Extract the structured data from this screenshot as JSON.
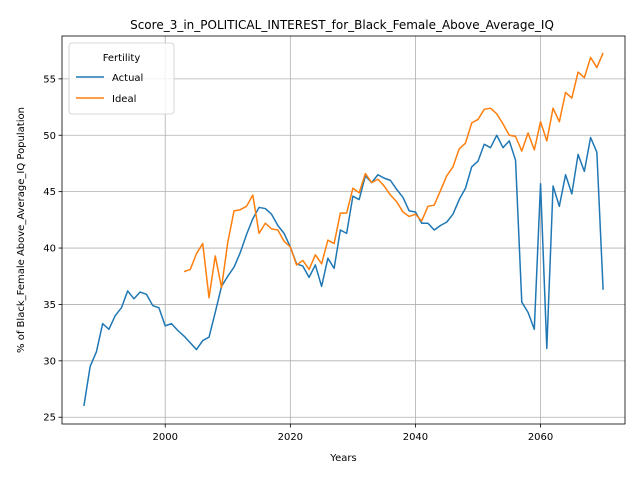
{
  "chart_data": {
    "type": "line",
    "title": "Score_3_in_POLITICAL_INTEREST_for_Black_Female_Above_Average_IQ",
    "xlabel": "Years",
    "ylabel": "% of Black_Female Above_Average_IQ Population",
    "xlim": [
      1983.5,
      2073.5
    ],
    "ylim": [
      24.4,
      58.8
    ],
    "xticks": [
      2000,
      2020,
      2040,
      2060
    ],
    "yticks": [
      25,
      30,
      35,
      40,
      45,
      50,
      55
    ],
    "grid": true,
    "legend": {
      "title": "Fertility",
      "placement": "top-left"
    },
    "colors": {
      "Actual": "#1f77b4",
      "Ideal": "#ff7f0e"
    },
    "series": [
      {
        "name": "Actual",
        "x": [
          1987,
          1988,
          1989,
          1990,
          1991,
          1992,
          1993,
          1994,
          1995,
          1996,
          1997,
          1998,
          1999,
          2000,
          2001,
          2002,
          2003,
          2004,
          2005,
          2006,
          2007,
          2008,
          2009,
          2010,
          2011,
          2012,
          2013,
          2014,
          2015,
          2016,
          2017,
          2018,
          2019,
          2020,
          2021,
          2022,
          2023,
          2024,
          2025,
          2026,
          2027,
          2028,
          2029,
          2030,
          2031,
          2032,
          2033,
          2034,
          2035,
          2036,
          2037,
          2038,
          2039,
          2040,
          2041,
          2042,
          2043,
          2044,
          2045,
          2046,
          2047,
          2048,
          2049,
          2050,
          2051,
          2052,
          2053,
          2054,
          2055,
          2056,
          2057,
          2058,
          2059,
          2060,
          2061,
          2062,
          2063,
          2064,
          2065,
          2066,
          2067,
          2068,
          2069,
          2070
        ],
        "y": [
          26.0,
          29.5,
          30.8,
          33.3,
          32.8,
          34.0,
          34.7,
          36.2,
          35.5,
          36.1,
          35.9,
          34.9,
          34.7,
          33.1,
          33.3,
          32.7,
          32.2,
          31.6,
          31.0,
          31.8,
          32.1,
          34.3,
          36.6,
          37.5,
          38.3,
          39.6,
          41.2,
          42.6,
          43.6,
          43.5,
          43.0,
          42.0,
          41.3,
          40.1,
          38.6,
          38.4,
          37.4,
          38.5,
          36.6,
          39.1,
          38.2,
          41.6,
          41.3,
          44.6,
          44.3,
          46.4,
          45.8,
          46.5,
          46.2,
          46.0,
          45.2,
          44.5,
          43.3,
          43.2,
          42.2,
          42.2,
          41.6,
          42.0,
          42.3,
          43.0,
          44.3,
          45.3,
          47.2,
          47.7,
          49.2,
          48.9,
          50.0,
          48.9,
          49.5,
          47.8,
          35.2,
          34.3,
          32.8,
          45.7,
          31.1,
          45.5,
          43.7,
          46.5,
          44.8,
          48.3,
          46.8,
          49.8,
          48.5,
          36.3
        ]
      },
      {
        "name": "Ideal",
        "x": [
          2003,
          2004,
          2005,
          2006,
          2007,
          2008,
          2009,
          2010,
          2011,
          2012,
          2013,
          2014,
          2015,
          2016,
          2017,
          2018,
          2019,
          2020,
          2021,
          2022,
          2023,
          2024,
          2025,
          2026,
          2027,
          2028,
          2029,
          2030,
          2031,
          2032,
          2033,
          2034,
          2035,
          2036,
          2037,
          2038,
          2039,
          2040,
          2041,
          2042,
          2043,
          2044,
          2045,
          2046,
          2047,
          2048,
          2049,
          2050,
          2051,
          2052,
          2053,
          2054,
          2055,
          2056,
          2057,
          2058,
          2059,
          2060,
          2061,
          2062,
          2063,
          2064,
          2065,
          2066,
          2067,
          2068,
          2069,
          2070
        ],
        "y": [
          37.9,
          38.1,
          39.5,
          40.4,
          35.6,
          39.3,
          36.5,
          40.5,
          43.3,
          43.4,
          43.7,
          44.7,
          41.3,
          42.2,
          41.7,
          41.6,
          40.6,
          40.1,
          38.5,
          38.9,
          38.1,
          39.4,
          38.6,
          40.7,
          40.4,
          43.1,
          43.1,
          45.3,
          44.9,
          46.6,
          45.8,
          46.1,
          45.5,
          44.7,
          44.1,
          43.2,
          42.8,
          43.0,
          42.4,
          43.7,
          43.8,
          45.1,
          46.4,
          47.2,
          48.8,
          49.3,
          51.1,
          51.4,
          52.3,
          52.4,
          51.9,
          51.0,
          50.0,
          49.9,
          48.6,
          50.2,
          48.7,
          51.2,
          49.5,
          52.4,
          51.2,
          53.8,
          53.3,
          55.6,
          55.1,
          56.9,
          56.0,
          57.3
        ]
      }
    ]
  }
}
